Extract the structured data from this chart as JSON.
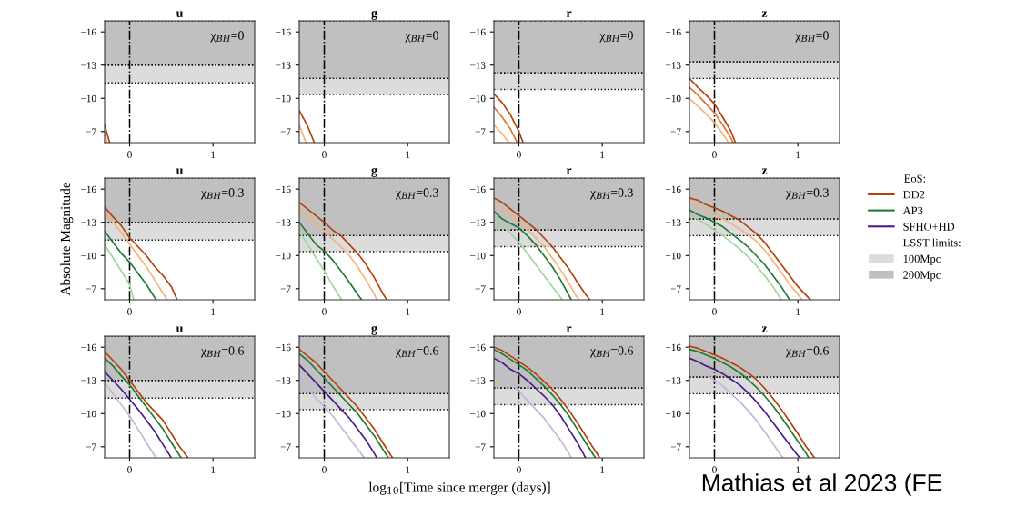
{
  "chart_data": [
    {
      "type": "line",
      "title": "u",
      "annotations": [
        "χ$_{BH}$=0"
      ],
      "xlim": [
        -0.3,
        1.5
      ],
      "ylim": [
        -6,
        -17
      ],
      "xticks": [
        0,
        1
      ],
      "yticks": [
        -16,
        -13,
        -10,
        -7
      ],
      "bands": [
        {
          "axis": "y",
          "from": -13,
          "to": -11.4,
          "color": "#dcdcdc"
        },
        {
          "axis": "y",
          "from": -17,
          "to": -13,
          "color": "#c0c0c0"
        }
      ],
      "ref_lines": [
        {
          "axis": "x",
          "value": 0,
          "line_style": "dashdot",
          "color": "#000000"
        }
      ],
      "series": [
        {
          "color": "#b5400a",
          "x": [
            -0.3,
            -0.24
          ],
          "values": [
            -7.6,
            -6.0
          ]
        },
        {
          "color": "#f5b27a",
          "x": [
            -0.3,
            -0.27
          ],
          "values": [
            -7.0,
            -6.0
          ]
        }
      ]
    },
    {
      "type": "line",
      "title": "g",
      "annotations": [
        "χ$_{BH}$=0"
      ],
      "xlim": [
        -0.3,
        1.5
      ],
      "ylim": [
        -6,
        -17
      ],
      "xticks": [
        0,
        1
      ],
      "yticks": [
        -16,
        -13,
        -10,
        -7
      ],
      "bands": [
        {
          "axis": "y",
          "from": -11.8,
          "to": -10.35,
          "color": "#dcdcdc"
        },
        {
          "axis": "y",
          "from": -17,
          "to": -11.8,
          "color": "#c0c0c0"
        }
      ],
      "ref_lines": [
        {
          "axis": "x",
          "value": 0,
          "line_style": "dashdot",
          "color": "#000000"
        }
      ],
      "series": [
        {
          "color": "#b5400a",
          "x": [
            -0.3,
            -0.2,
            -0.12
          ],
          "values": [
            -8.9,
            -7.5,
            -6.0
          ]
        },
        {
          "color": "#f5b27a",
          "x": [
            -0.3,
            -0.22
          ],
          "values": [
            -7.6,
            -6.0
          ]
        }
      ]
    },
    {
      "type": "line",
      "title": "r",
      "annotations": [
        "χ$_{BH}$=0"
      ],
      "xlim": [
        -0.3,
        1.5
      ],
      "ylim": [
        -6,
        -17
      ],
      "xticks": [
        0,
        1
      ],
      "yticks": [
        -16,
        -13,
        -10,
        -7
      ],
      "bands": [
        {
          "axis": "y",
          "from": -12.3,
          "to": -10.8,
          "color": "#dcdcdc"
        },
        {
          "axis": "y",
          "from": -17,
          "to": -12.3,
          "color": "#c0c0c0"
        }
      ],
      "ref_lines": [
        {
          "axis": "x",
          "value": 0,
          "line_style": "dashdot",
          "color": "#000000"
        }
      ],
      "series": [
        {
          "color": "#b5400a",
          "x": [
            -0.3,
            -0.2,
            -0.1,
            0,
            0.05
          ],
          "values": [
            -10.4,
            -9.6,
            -8.5,
            -7.0,
            -6.0
          ]
        },
        {
          "color": "#e07030",
          "x": [
            -0.3,
            -0.2,
            -0.1,
            -0.02
          ],
          "values": [
            -9.2,
            -8.3,
            -7.2,
            -6.0
          ]
        },
        {
          "color": "#f5b27a",
          "x": [
            -0.3,
            -0.2,
            -0.12
          ],
          "values": [
            -7.6,
            -6.8,
            -6.0
          ]
        }
      ]
    },
    {
      "type": "line",
      "title": "z",
      "annotations": [
        "χ$_{BH}$=0"
      ],
      "xlim": [
        -0.3,
        1.5
      ],
      "ylim": [
        -6,
        -17
      ],
      "xticks": [
        0,
        1
      ],
      "yticks": [
        -16,
        -13,
        -10,
        -7
      ],
      "bands": [
        {
          "axis": "y",
          "from": -13.3,
          "to": -11.8,
          "color": "#dcdcdc"
        },
        {
          "axis": "y",
          "from": -17,
          "to": -13.3,
          "color": "#c0c0c0"
        }
      ],
      "ref_lines": [
        {
          "axis": "x",
          "value": 0,
          "line_style": "dashdot",
          "color": "#000000"
        }
      ],
      "series": [
        {
          "color": "#b5400a",
          "x": [
            -0.3,
            -0.2,
            -0.1,
            0,
            0.1,
            0.2,
            0.25
          ],
          "values": [
            -11.8,
            -11.0,
            -10.3,
            -9.5,
            -8.3,
            -7.0,
            -6.0
          ]
        },
        {
          "color": "#e07030",
          "x": [
            -0.3,
            -0.2,
            -0.1,
            0,
            0.1,
            0.2,
            0.22
          ],
          "values": [
            -11.0,
            -10.3,
            -9.5,
            -8.7,
            -7.6,
            -6.4,
            -6.0
          ]
        },
        {
          "color": "#f5b27a",
          "x": [
            -0.3,
            -0.2,
            -0.1,
            0,
            0.1,
            0.17
          ],
          "values": [
            -10.0,
            -9.3,
            -8.6,
            -7.8,
            -6.8,
            -6.0
          ]
        }
      ]
    },
    {
      "type": "line",
      "title": "u",
      "ylabel": "Absolute Magnitude",
      "annotations": [
        "χ$_{BH}$=0.3"
      ],
      "xlim": [
        -0.3,
        1.5
      ],
      "ylim": [
        -6,
        -17
      ],
      "xticks": [
        0,
        1
      ],
      "yticks": [
        -16,
        -13,
        -10,
        -7
      ],
      "bands": [
        {
          "axis": "y",
          "from": -13,
          "to": -11.4,
          "color": "#dcdcdc"
        },
        {
          "axis": "y",
          "from": -17,
          "to": -13,
          "color": "#c0c0c0"
        }
      ],
      "ref_lines": [
        {
          "axis": "x",
          "value": 0,
          "line_style": "dashdot",
          "color": "#000000"
        }
      ],
      "series": [
        {
          "color": "#b5400a",
          "x": [
            -0.3,
            -0.2,
            -0.1,
            0,
            0.1,
            0.2,
            0.3,
            0.4,
            0.5,
            0.57
          ],
          "values": [
            -14.4,
            -13.5,
            -12.7,
            -11.6,
            -10.8,
            -10.0,
            -9.0,
            -8.2,
            -7.2,
            -6.0
          ]
        },
        {
          "color": "#f5b27a",
          "x": [
            -0.3,
            -0.2,
            -0.1,
            0,
            0.1,
            0.2,
            0.3,
            0.4,
            0.45
          ],
          "values": [
            -13.8,
            -13.0,
            -12.1,
            -11.0,
            -10.0,
            -9.0,
            -7.8,
            -6.6,
            -6.0
          ]
        },
        {
          "color": "#1e7a34",
          "x": [
            -0.3,
            -0.2,
            -0.1,
            0,
            0.1,
            0.2,
            0.3,
            0.32
          ],
          "values": [
            -12.2,
            -11.2,
            -10.2,
            -9.4,
            -8.4,
            -7.4,
            -6.2,
            -6.0
          ]
        },
        {
          "color": "#9ed69a",
          "x": [
            -0.3,
            -0.2,
            -0.1,
            0,
            0.05
          ],
          "values": [
            -11.0,
            -9.8,
            -8.6,
            -7.4,
            -6.0
          ]
        }
      ]
    },
    {
      "type": "line",
      "title": "g",
      "annotations": [
        "χ$_{BH}$=0.3"
      ],
      "xlim": [
        -0.3,
        1.5
      ],
      "ylim": [
        -6,
        -17
      ],
      "xticks": [
        0,
        1
      ],
      "yticks": [
        -16,
        -13,
        -10,
        -7
      ],
      "bands": [
        {
          "axis": "y",
          "from": -11.8,
          "to": -10.35,
          "color": "#dcdcdc"
        },
        {
          "axis": "y",
          "from": -17,
          "to": -11.8,
          "color": "#c0c0c0"
        }
      ],
      "ref_lines": [
        {
          "axis": "x",
          "value": 0,
          "line_style": "dashdot",
          "color": "#000000"
        }
      ],
      "series": [
        {
          "color": "#b5400a",
          "x": [
            -0.3,
            -0.2,
            -0.1,
            0,
            0.1,
            0.2,
            0.3,
            0.4,
            0.5,
            0.6,
            0.7,
            0.75
          ],
          "values": [
            -14.8,
            -14.2,
            -13.6,
            -13.0,
            -12.3,
            -11.8,
            -11.0,
            -10.2,
            -9.2,
            -8.0,
            -6.6,
            -6.0
          ]
        },
        {
          "color": "#f5b27a",
          "x": [
            -0.3,
            -0.2,
            -0.1,
            0,
            0.1,
            0.2,
            0.3,
            0.4,
            0.5,
            0.6,
            0.63
          ],
          "values": [
            -14.2,
            -13.5,
            -12.8,
            -12.2,
            -11.5,
            -10.8,
            -10.0,
            -9.0,
            -7.8,
            -6.5,
            -6.0
          ]
        },
        {
          "color": "#1e7a34",
          "x": [
            -0.3,
            -0.2,
            -0.1,
            0,
            0.1,
            0.2,
            0.3,
            0.4,
            0.45
          ],
          "values": [
            -13.0,
            -12.0,
            -11.0,
            -10.4,
            -9.6,
            -8.6,
            -7.6,
            -6.5,
            -6.0
          ]
        },
        {
          "color": "#9ed69a",
          "x": [
            -0.3,
            -0.2,
            -0.1,
            0,
            0.1,
            0.2,
            0.21
          ],
          "values": [
            -12.2,
            -11.0,
            -9.8,
            -8.6,
            -7.3,
            -6.1,
            -6.0
          ]
        }
      ]
    },
    {
      "type": "line",
      "title": "r",
      "annotations": [
        "χ$_{BH}$=0.3"
      ],
      "xlim": [
        -0.3,
        1.5
      ],
      "ylim": [
        -6,
        -17
      ],
      "xticks": [
        0,
        1
      ],
      "yticks": [
        -16,
        -13,
        -10,
        -7
      ],
      "bands": [
        {
          "axis": "y",
          "from": -12.3,
          "to": -10.8,
          "color": "#dcdcdc"
        },
        {
          "axis": "y",
          "from": -17,
          "to": -12.3,
          "color": "#c0c0c0"
        }
      ],
      "ref_lines": [
        {
          "axis": "x",
          "value": 0,
          "line_style": "dashdot",
          "color": "#000000"
        }
      ],
      "series": [
        {
          "color": "#b5400a",
          "x": [
            -0.3,
            -0.2,
            -0.1,
            0,
            0.1,
            0.2,
            0.3,
            0.4,
            0.5,
            0.6,
            0.7,
            0.8,
            0.85
          ],
          "values": [
            -15.2,
            -14.8,
            -14.2,
            -13.6,
            -13.0,
            -12.4,
            -11.6,
            -10.8,
            -9.8,
            -8.8,
            -7.6,
            -6.5,
            -6.0
          ]
        },
        {
          "color": "#f5b27a",
          "x": [
            -0.3,
            -0.2,
            -0.1,
            0,
            0.1,
            0.2,
            0.3,
            0.4,
            0.5,
            0.6,
            0.7,
            0.72
          ],
          "values": [
            -14.7,
            -14.2,
            -13.6,
            -13.0,
            -12.4,
            -11.6,
            -10.8,
            -9.8,
            -8.7,
            -7.5,
            -6.2,
            -6.0
          ]
        },
        {
          "color": "#1e7a34",
          "x": [
            -0.3,
            -0.2,
            -0.1,
            0,
            0.1,
            0.2,
            0.3,
            0.4,
            0.5,
            0.6,
            0.63
          ],
          "values": [
            -14.0,
            -13.3,
            -12.9,
            -12.5,
            -11.8,
            -11.0,
            -10.0,
            -9.0,
            -7.8,
            -6.4,
            -6.0
          ]
        },
        {
          "color": "#9ed69a",
          "x": [
            -0.3,
            -0.2,
            -0.1,
            0,
            0.1,
            0.2,
            0.3,
            0.4,
            0.5,
            0.52
          ],
          "values": [
            -13.5,
            -12.7,
            -12.0,
            -11.2,
            -10.2,
            -9.2,
            -8.2,
            -7.2,
            -6.2,
            -6.0
          ]
        }
      ]
    },
    {
      "type": "line",
      "title": "z",
      "annotations": [
        "χ$_{BH}$=0.3"
      ],
      "xlim": [
        -0.3,
        1.5
      ],
      "ylim": [
        -6,
        -17
      ],
      "xticks": [
        0,
        1
      ],
      "yticks": [
        -16,
        -13,
        -10,
        -7
      ],
      "bands": [
        {
          "axis": "y",
          "from": -13.3,
          "to": -11.8,
          "color": "#dcdcdc"
        },
        {
          "axis": "y",
          "from": -17,
          "to": -13.3,
          "color": "#c0c0c0"
        }
      ],
      "ref_lines": [
        {
          "axis": "x",
          "value": 0,
          "line_style": "dashdot",
          "color": "#000000"
        }
      ],
      "series": [
        {
          "color": "#b5400a",
          "x": [
            -0.3,
            -0.2,
            -0.1,
            0,
            0.1,
            0.2,
            0.3,
            0.4,
            0.5,
            0.6,
            0.7,
            0.8,
            0.9,
            1.0,
            1.1,
            1.15
          ],
          "values": [
            -15.2,
            -15.0,
            -14.6,
            -14.3,
            -14.0,
            -13.6,
            -13.2,
            -12.6,
            -12.0,
            -11.2,
            -10.2,
            -9.2,
            -8.2,
            -7.2,
            -6.4,
            -6.0
          ]
        },
        {
          "color": "#f5b27a",
          "x": [
            -0.3,
            -0.2,
            -0.1,
            0,
            0.1,
            0.2,
            0.3,
            0.4,
            0.5,
            0.6,
            0.7,
            0.8,
            0.9,
            1.0,
            1.05
          ],
          "values": [
            -14.8,
            -14.5,
            -14.1,
            -13.7,
            -13.3,
            -12.9,
            -12.4,
            -11.9,
            -11.3,
            -10.5,
            -9.5,
            -8.5,
            -7.4,
            -6.5,
            -6.0
          ]
        },
        {
          "color": "#1e7a34",
          "x": [
            -0.3,
            -0.2,
            -0.1,
            0,
            0.1,
            0.2,
            0.3,
            0.4,
            0.5,
            0.6,
            0.7,
            0.8,
            0.9
          ],
          "values": [
            -14.1,
            -13.7,
            -13.4,
            -13.0,
            -12.6,
            -12.0,
            -11.4,
            -10.8,
            -10.0,
            -9.2,
            -8.2,
            -7.2,
            -6.0
          ]
        },
        {
          "color": "#9ed69a",
          "x": [
            -0.3,
            -0.2,
            -0.1,
            0,
            0.1,
            0.2,
            0.3,
            0.4,
            0.5,
            0.6,
            0.7,
            0.8
          ],
          "values": [
            -13.8,
            -13.3,
            -12.8,
            -12.3,
            -11.8,
            -11.2,
            -10.6,
            -9.9,
            -9.1,
            -8.2,
            -7.2,
            -6.0
          ]
        }
      ]
    },
    {
      "type": "line",
      "title": "u",
      "annotations": [
        "χ$_{BH}$=0.6"
      ],
      "xlim": [
        -0.3,
        1.5
      ],
      "ylim": [
        -6,
        -17
      ],
      "xticks": [
        0,
        1
      ],
      "yticks": [
        -16,
        -13,
        -10,
        -7
      ],
      "bands": [
        {
          "axis": "y",
          "from": -13,
          "to": -11.4,
          "color": "#dcdcdc"
        },
        {
          "axis": "y",
          "from": -17,
          "to": -13,
          "color": "#c0c0c0"
        }
      ],
      "ref_lines": [
        {
          "axis": "x",
          "value": 0,
          "line_style": "dashdot",
          "color": "#000000"
        }
      ],
      "series": [
        {
          "color": "#b5400a",
          "x": [
            -0.3,
            -0.2,
            -0.1,
            0,
            0.1,
            0.2,
            0.3,
            0.4,
            0.5,
            0.6,
            0.7
          ],
          "values": [
            -15.6,
            -14.8,
            -14.0,
            -13.0,
            -12.0,
            -11.0,
            -10.2,
            -9.4,
            -8.2,
            -7.0,
            -6.0
          ]
        },
        {
          "color": "#1e7a34",
          "x": [
            -0.3,
            -0.2,
            -0.1,
            0,
            0.1,
            0.2,
            0.3,
            0.4,
            0.5,
            0.6,
            0.62
          ],
          "values": [
            -15.0,
            -14.3,
            -13.4,
            -12.6,
            -11.6,
            -10.6,
            -9.6,
            -8.6,
            -7.4,
            -6.2,
            -6.0
          ]
        },
        {
          "color": "#4b1a8a",
          "x": [
            -0.3,
            -0.2,
            -0.1,
            0,
            0.1,
            0.2,
            0.3,
            0.4,
            0.5
          ],
          "values": [
            -13.8,
            -13.0,
            -12.2,
            -11.3,
            -10.4,
            -9.4,
            -8.4,
            -7.2,
            -6.0
          ]
        },
        {
          "color": "#c3b6db",
          "x": [
            -0.3,
            -0.2,
            -0.1,
            0,
            0.1,
            0.2,
            0.3,
            0.32
          ],
          "values": [
            -12.8,
            -11.8,
            -10.8,
            -9.8,
            -8.6,
            -7.4,
            -6.2,
            -6.0
          ]
        }
      ]
    },
    {
      "type": "line",
      "title": "g",
      "xlabel": "log$_{10}$[Time since merger (days)]",
      "annotations": [
        "χ$_{BH}$=0.6"
      ],
      "xlim": [
        -0.3,
        1.5
      ],
      "ylim": [
        -6,
        -17
      ],
      "xticks": [
        0,
        1
      ],
      "yticks": [
        -16,
        -13,
        -10,
        -7
      ],
      "bands": [
        {
          "axis": "y",
          "from": -11.8,
          "to": -10.35,
          "color": "#dcdcdc"
        },
        {
          "axis": "y",
          "from": -17,
          "to": -11.8,
          "color": "#c0c0c0"
        }
      ],
      "ref_lines": [
        {
          "axis": "x",
          "value": 0,
          "line_style": "dashdot",
          "color": "#000000"
        }
      ],
      "series": [
        {
          "color": "#b5400a",
          "x": [
            -0.3,
            -0.2,
            -0.1,
            0,
            0.1,
            0.2,
            0.3,
            0.4,
            0.5,
            0.6,
            0.7,
            0.8,
            0.82
          ],
          "values": [
            -15.8,
            -15.2,
            -14.6,
            -13.8,
            -13.0,
            -12.2,
            -11.4,
            -10.6,
            -9.6,
            -8.6,
            -7.4,
            -6.2,
            -6.0
          ]
        },
        {
          "color": "#1e7a34",
          "x": [
            -0.3,
            -0.2,
            -0.1,
            0,
            0.1,
            0.2,
            0.3,
            0.4,
            0.5,
            0.6,
            0.7,
            0.77
          ],
          "values": [
            -15.4,
            -14.8,
            -14.0,
            -13.2,
            -12.4,
            -11.6,
            -10.8,
            -10.0,
            -9.0,
            -8.0,
            -6.8,
            -6.0
          ]
        },
        {
          "color": "#4b1a8a",
          "x": [
            -0.3,
            -0.2,
            -0.1,
            0,
            0.1,
            0.2,
            0.3,
            0.4,
            0.5,
            0.6,
            0.63
          ],
          "values": [
            -14.4,
            -13.6,
            -12.8,
            -12.0,
            -11.2,
            -10.4,
            -9.6,
            -8.6,
            -7.6,
            -6.4,
            -6.0
          ]
        },
        {
          "color": "#c3b6db",
          "x": [
            -0.3,
            -0.2,
            -0.1,
            0,
            0.1,
            0.2,
            0.3,
            0.4,
            0.48
          ],
          "values": [
            -13.4,
            -12.4,
            -11.4,
            -10.6,
            -9.8,
            -8.8,
            -7.8,
            -6.8,
            -6.0
          ]
        }
      ]
    },
    {
      "type": "line",
      "title": "r",
      "annotations": [
        "χ$_{BH}$=0.6"
      ],
      "xlim": [
        -0.3,
        1.5
      ],
      "ylim": [
        -6,
        -17
      ],
      "xticks": [
        0,
        1
      ],
      "yticks": [
        -16,
        -13,
        -10,
        -7
      ],
      "bands": [
        {
          "axis": "y",
          "from": -12.3,
          "to": -10.8,
          "color": "#dcdcdc"
        },
        {
          "axis": "y",
          "from": -17,
          "to": -12.3,
          "color": "#c0c0c0"
        }
      ],
      "ref_lines": [
        {
          "axis": "x",
          "value": 0,
          "line_style": "dashdot",
          "color": "#000000"
        }
      ],
      "series": [
        {
          "color": "#b5400a",
          "x": [
            -0.3,
            -0.2,
            -0.1,
            0,
            0.1,
            0.2,
            0.3,
            0.4,
            0.5,
            0.6,
            0.7,
            0.8,
            0.9,
            0.97
          ],
          "values": [
            -16.0,
            -15.7,
            -15.2,
            -14.7,
            -14.2,
            -13.6,
            -12.9,
            -12.2,
            -11.3,
            -10.3,
            -9.2,
            -8.0,
            -6.8,
            -6.0
          ]
        },
        {
          "color": "#1e7a34",
          "x": [
            -0.3,
            -0.2,
            -0.1,
            0,
            0.1,
            0.2,
            0.3,
            0.4,
            0.5,
            0.6,
            0.7,
            0.8,
            0.9,
            0.92
          ],
          "values": [
            -15.8,
            -15.4,
            -14.9,
            -14.4,
            -13.9,
            -13.2,
            -12.5,
            -11.7,
            -10.8,
            -9.8,
            -8.6,
            -7.4,
            -6.2,
            -6.0
          ]
        },
        {
          "color": "#4b1a8a",
          "x": [
            -0.3,
            -0.2,
            -0.1,
            0,
            0.1,
            0.2,
            0.3,
            0.4,
            0.5,
            0.6,
            0.7,
            0.8
          ],
          "values": [
            -15.0,
            -14.6,
            -14.0,
            -13.6,
            -13.0,
            -12.3,
            -11.6,
            -10.8,
            -9.8,
            -8.6,
            -7.4,
            -6.0
          ]
        },
        {
          "color": "#c3b6db",
          "x": [
            -0.3,
            -0.2,
            -0.1,
            0,
            0.1,
            0.2,
            0.3,
            0.4,
            0.5,
            0.6,
            0.63
          ],
          "values": [
            -14.2,
            -13.5,
            -12.8,
            -12.0,
            -11.2,
            -10.4,
            -9.6,
            -8.6,
            -7.6,
            -6.4,
            -6.0
          ]
        }
      ]
    },
    {
      "type": "line",
      "title": "z",
      "annotations": [
        "χ$_{BH}$=0.6",
        "LSST limits:",
        "Mathias et al 2023 (FE"
      ],
      "legend": "right",
      "legend_title": "EoS:",
      "xlim": [
        -0.3,
        1.5
      ],
      "ylim": [
        -6,
        -17
      ],
      "xticks": [
        0,
        1
      ],
      "yticks": [
        -16,
        -13,
        -10,
        -7
      ],
      "bands": [
        {
          "axis": "y",
          "from": -13.3,
          "to": -11.8,
          "color": "#dcdcdc",
          "label": "100Mpc"
        },
        {
          "axis": "y",
          "from": -17,
          "to": -13.3,
          "color": "#c0c0c0",
          "label": "200Mpc"
        }
      ],
      "ref_lines": [
        {
          "axis": "x",
          "value": 0,
          "line_style": "dashdot",
          "color": "#000000"
        }
      ],
      "series": [
        {
          "name": "DD2",
          "color": "#b5400a",
          "x": [
            -0.3,
            -0.2,
            -0.1,
            0,
            0.1,
            0.2,
            0.3,
            0.4,
            0.5,
            0.6,
            0.7,
            0.8,
            0.9,
            1.0,
            1.1,
            1.2
          ],
          "values": [
            -16.1,
            -15.9,
            -15.6,
            -15.3,
            -15.0,
            -14.6,
            -14.2,
            -13.7,
            -13.1,
            -12.3,
            -11.4,
            -10.4,
            -9.3,
            -8.2,
            -7.0,
            -6.0
          ]
        },
        {
          "name": "AP3",
          "color": "#1e7a34",
          "x": [
            -0.3,
            -0.2,
            -0.1,
            0,
            0.1,
            0.2,
            0.3,
            0.4,
            0.5,
            0.6,
            0.7,
            0.8,
            0.9,
            1.0,
            1.1,
            1.13
          ],
          "values": [
            -15.8,
            -15.6,
            -15.3,
            -15.0,
            -14.6,
            -14.2,
            -13.7,
            -13.1,
            -12.4,
            -11.6,
            -10.7,
            -9.7,
            -8.6,
            -7.5,
            -6.4,
            -6.0
          ]
        },
        {
          "name": "SFHO+HD",
          "color": "#4b1a8a",
          "x": [
            -0.3,
            -0.2,
            -0.1,
            0,
            0.1,
            0.2,
            0.3,
            0.4,
            0.5,
            0.6,
            0.7,
            0.8,
            0.9,
            1.0,
            1.03
          ],
          "values": [
            -15.0,
            -14.7,
            -14.3,
            -14.0,
            -13.6,
            -13.1,
            -12.6,
            -11.9,
            -11.1,
            -10.2,
            -9.2,
            -8.2,
            -7.2,
            -6.2,
            -6.0
          ]
        },
        {
          "color": "#c3b6db",
          "x": [
            -0.3,
            -0.2,
            -0.1,
            0,
            0.1,
            0.2,
            0.3,
            0.4,
            0.5,
            0.6,
            0.7,
            0.8,
            0.82
          ],
          "values": [
            -14.4,
            -14.0,
            -13.5,
            -13.0,
            -12.5,
            -11.8,
            -11.1,
            -10.3,
            -9.4,
            -8.4,
            -7.3,
            -6.2,
            -6.0
          ]
        }
      ]
    }
  ]
}
